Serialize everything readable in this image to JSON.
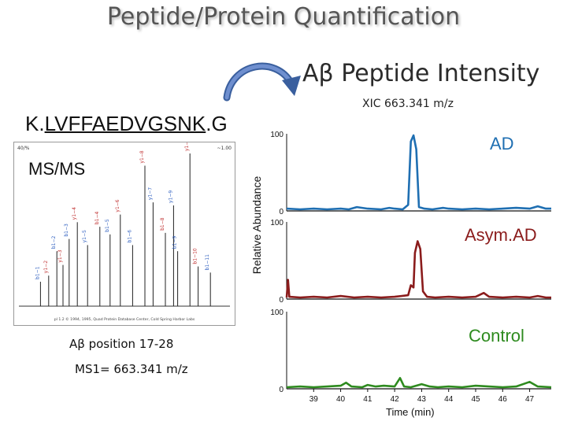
{
  "title": "Peptide/Protein Quantification",
  "peptide_intensity": "Aβ  Peptide Intensity",
  "xic_label": "XIC 663.341 m/z",
  "sequence": {
    "prefix": "K.",
    "core": "LVFFAEDVGSNK",
    "suffix": ".G"
  },
  "msms_label": "MS/MS",
  "spectrum_box": {
    "header_left": "40/%",
    "header_right": "~1.00",
    "footer": "pl 1.2 © 1994, 1995, Quad Protein Database Center, Cold Spring Harbor Labs",
    "peaks": [
      {
        "mz": 0.09,
        "h": 0.16,
        "label": "b1−1"
      },
      {
        "mz": 0.13,
        "h": 0.2,
        "label": "y1−2"
      },
      {
        "mz": 0.17,
        "h": 0.36,
        "label": "b1−2"
      },
      {
        "mz": 0.2,
        "h": 0.27,
        "label": "y1−3"
      },
      {
        "mz": 0.23,
        "h": 0.44,
        "label": "b1−3"
      },
      {
        "mz": 0.27,
        "h": 0.55,
        "label": "y1−4"
      },
      {
        "mz": 0.32,
        "h": 0.4,
        "label": "y1−5"
      },
      {
        "mz": 0.38,
        "h": 0.52,
        "label": "b1−4"
      },
      {
        "mz": 0.43,
        "h": 0.47,
        "label": "b1−5"
      },
      {
        "mz": 0.48,
        "h": 0.6,
        "label": "y1−6"
      },
      {
        "mz": 0.54,
        "h": 0.4,
        "label": "b1−6"
      },
      {
        "mz": 0.6,
        "h": 0.92,
        "label": "y1−8"
      },
      {
        "mz": 0.64,
        "h": 0.68,
        "label": "y1−7"
      },
      {
        "mz": 0.7,
        "h": 0.48,
        "label": "b1−8"
      },
      {
        "mz": 0.74,
        "h": 0.66,
        "label": "y1−9"
      },
      {
        "mz": 0.82,
        "h": 1.0,
        "label": "y1−10"
      },
      {
        "mz": 0.76,
        "h": 0.36,
        "label": "b1−9"
      },
      {
        "mz": 0.86,
        "h": 0.26,
        "label": "b1−10"
      },
      {
        "mz": 0.92,
        "h": 0.22,
        "label": "b1−11"
      }
    ]
  },
  "abeta_position": "Aβ position 17-28",
  "ms1_label": "MS1= 663.341 m/z",
  "y_axis_title": "Relative Abundance",
  "x_axis_title": "Time (min)",
  "chart_data": {
    "type": "line",
    "title": "XIC 663.341 m/z",
    "xlabel": "Time (min)",
    "ylabel": "Relative Abundance",
    "xlim": [
      38.0,
      47.8
    ],
    "x_ticks": [
      39,
      40,
      41,
      42,
      43,
      44,
      45,
      46,
      47
    ],
    "ylim": [
      0,
      100
    ],
    "panels": [
      {
        "name": "AD",
        "color": "#1f6fb2",
        "y_top_label": "100",
        "y_bottom_label": "0",
        "points": [
          [
            38,
            3
          ],
          [
            38.5,
            2
          ],
          [
            39,
            3
          ],
          [
            39.5,
            2
          ],
          [
            40,
            3
          ],
          [
            40.3,
            2
          ],
          [
            40.6,
            5
          ],
          [
            41,
            3
          ],
          [
            41.5,
            2
          ],
          [
            41.8,
            4
          ],
          [
            42,
            3
          ],
          [
            42.3,
            2
          ],
          [
            42.5,
            8
          ],
          [
            42.6,
            90
          ],
          [
            42.7,
            98
          ],
          [
            42.8,
            80
          ],
          [
            42.9,
            5
          ],
          [
            43.1,
            3
          ],
          [
            43.4,
            2
          ],
          [
            43.8,
            4
          ],
          [
            44,
            3
          ],
          [
            44.5,
            2
          ],
          [
            45,
            3
          ],
          [
            45.5,
            2
          ],
          [
            46,
            3
          ],
          [
            46.5,
            4
          ],
          [
            47,
            3
          ],
          [
            47.3,
            6
          ],
          [
            47.6,
            3
          ],
          [
            47.8,
            3
          ]
        ]
      },
      {
        "name": "Asym.AD",
        "color": "#8b1c1c",
        "y_top_label": "100",
        "y_bottom_label": "0",
        "points": [
          [
            38,
            2
          ],
          [
            38.05,
            25
          ],
          [
            38.1,
            3
          ],
          [
            38.5,
            2
          ],
          [
            39,
            3
          ],
          [
            39.5,
            2
          ],
          [
            40,
            4
          ],
          [
            40.5,
            2
          ],
          [
            41,
            3
          ],
          [
            41.5,
            2
          ],
          [
            42,
            3
          ],
          [
            42.5,
            5
          ],
          [
            42.6,
            18
          ],
          [
            42.7,
            15
          ],
          [
            42.75,
            60
          ],
          [
            42.85,
            75
          ],
          [
            42.95,
            65
          ],
          [
            43.05,
            10
          ],
          [
            43.2,
            3
          ],
          [
            43.5,
            2
          ],
          [
            44,
            3
          ],
          [
            44.5,
            2
          ],
          [
            45,
            3
          ],
          [
            45.3,
            8
          ],
          [
            45.5,
            3
          ],
          [
            46,
            2
          ],
          [
            46.5,
            3
          ],
          [
            47,
            2
          ],
          [
            47.3,
            4
          ],
          [
            47.6,
            2
          ],
          [
            47.8,
            2
          ]
        ]
      },
      {
        "name": "Control",
        "color": "#2e8b1f",
        "y_top_label": "100",
        "y_bottom_label": "0",
        "points": [
          [
            38,
            2
          ],
          [
            38.5,
            3
          ],
          [
            39,
            2
          ],
          [
            39.5,
            3
          ],
          [
            40,
            4
          ],
          [
            40.2,
            8
          ],
          [
            40.4,
            3
          ],
          [
            40.8,
            2
          ],
          [
            41,
            5
          ],
          [
            41.3,
            3
          ],
          [
            41.6,
            4
          ],
          [
            42,
            3
          ],
          [
            42.2,
            14
          ],
          [
            42.35,
            3
          ],
          [
            42.6,
            2
          ],
          [
            43,
            6
          ],
          [
            43.3,
            3
          ],
          [
            43.6,
            2
          ],
          [
            44,
            3
          ],
          [
            44.5,
            2
          ],
          [
            45,
            4
          ],
          [
            45.5,
            3
          ],
          [
            46,
            2
          ],
          [
            46.5,
            3
          ],
          [
            47,
            9
          ],
          [
            47.3,
            3
          ],
          [
            47.8,
            2
          ]
        ]
      }
    ]
  }
}
